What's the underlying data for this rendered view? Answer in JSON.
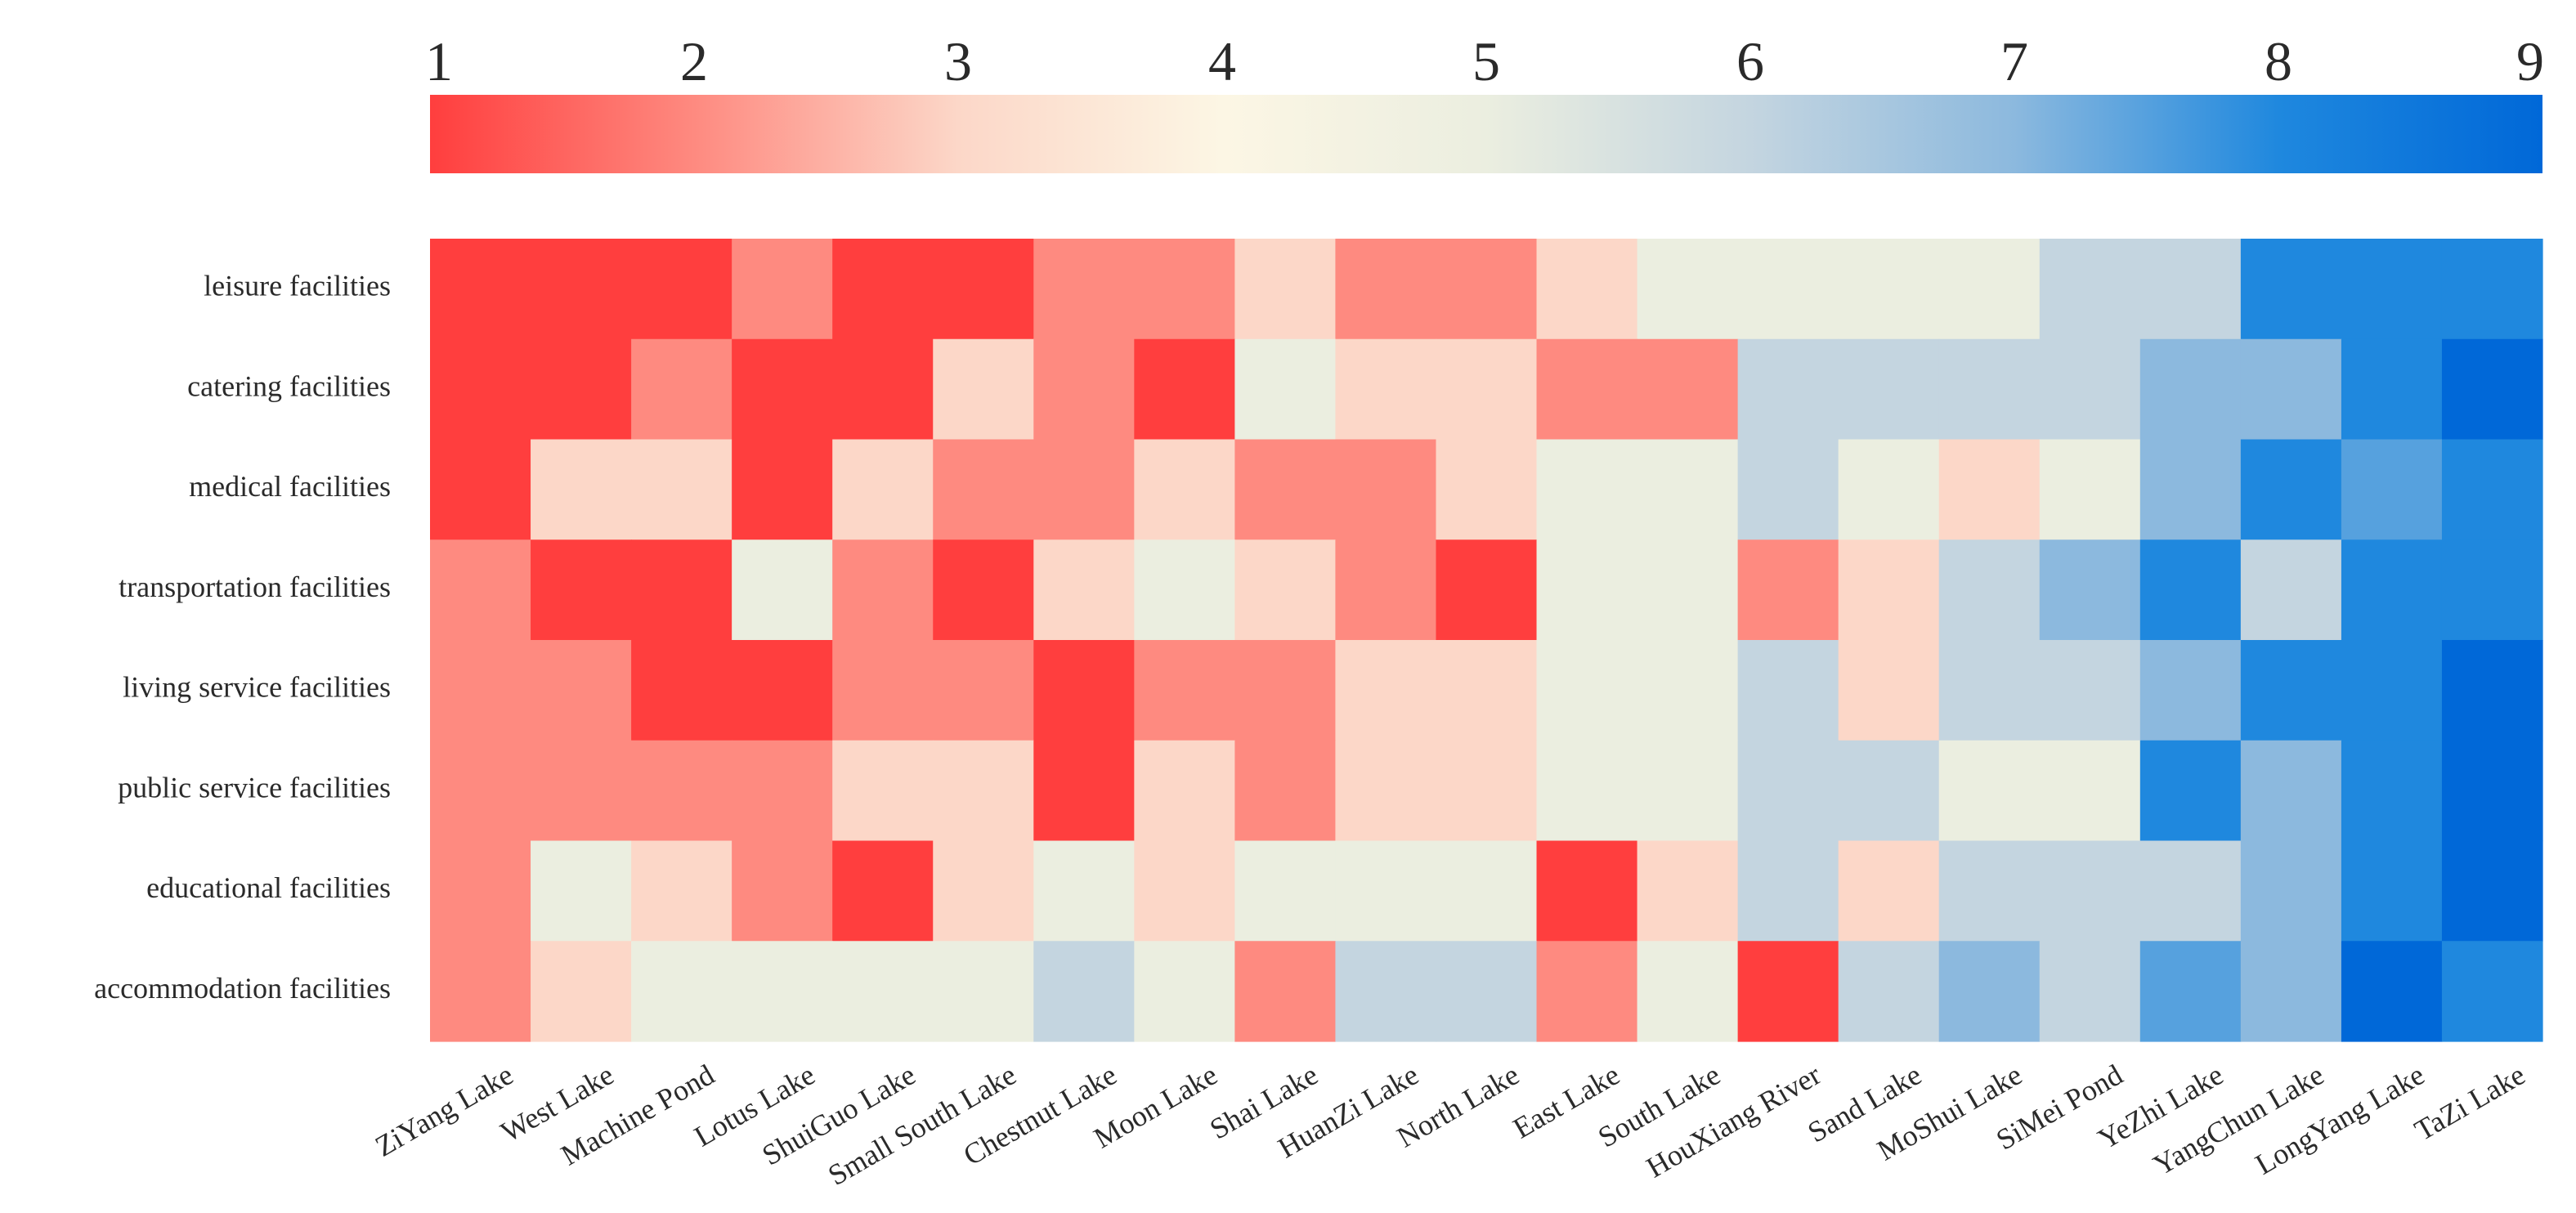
{
  "chart_data": {
    "type": "heatmap",
    "title": "",
    "xlabel": "",
    "ylabel": "",
    "colorbar": {
      "ticks": [
        "1",
        "2",
        "3",
        "4",
        "5",
        "6",
        "7",
        "8",
        "9"
      ],
      "range": [
        1,
        9
      ],
      "stops": [
        "#ff3e3e",
        "#fe8a80",
        "#fcd7c8",
        "#fcf6e4",
        "#ebeee0",
        "#c4d5e0",
        "#8cb9de",
        "#1f88de",
        "#0068d8"
      ]
    },
    "rows": [
      "leisure facilities",
      "catering facilities",
      "medical facilities",
      "transportation facilities",
      "living service facilities",
      "public service facilities",
      "educational facilities",
      "accommodation facilities"
    ],
    "columns": [
      "ZiYang Lake",
      "West Lake",
      "Machine Pond",
      "Lotus Lake",
      "ShuiGuo Lake",
      "Small South Lake",
      "Chestnut Lake",
      "Moon Lake",
      "Shai Lake",
      "HuanZi Lake",
      "North Lake",
      "East Lake",
      "South Lake",
      "HouXiang River",
      "Sand Lake",
      "MoShui Lake",
      "SiMei Pond",
      "YeZhi Lake",
      "YangChun Lake",
      "LongYang Lake",
      "TaZi Lake"
    ],
    "values": [
      [
        1,
        1,
        1,
        2,
        1,
        1,
        2,
        2,
        3,
        2,
        2,
        3,
        5,
        5,
        5,
        5,
        6,
        6,
        8,
        8,
        8
      ],
      [
        1,
        1,
        2,
        1,
        1,
        3,
        2,
        1,
        5,
        3,
        3,
        2,
        2,
        6,
        6,
        6,
        6,
        7,
        7,
        8,
        9
      ],
      [
        1,
        3,
        3,
        1,
        3,
        2,
        2,
        3,
        2,
        2,
        3,
        5,
        5,
        6,
        5,
        3,
        5,
        7,
        8,
        7.5,
        8
      ],
      [
        2,
        1,
        1,
        5,
        2,
        1,
        3,
        5,
        3,
        2,
        1,
        5,
        5,
        2,
        3,
        6,
        7,
        8,
        6,
        8,
        8
      ],
      [
        2,
        2,
        1,
        1,
        2,
        2,
        1,
        2,
        2,
        3,
        3,
        5,
        5,
        6,
        3,
        6,
        6,
        7,
        8,
        8,
        9
      ],
      [
        2,
        2,
        2,
        2,
        3,
        3,
        1,
        3,
        2,
        3,
        3,
        5,
        5,
        6,
        6,
        5,
        5,
        8,
        7,
        8,
        9
      ],
      [
        2,
        5,
        3,
        2,
        1,
        3,
        5,
        3,
        5,
        5,
        5,
        1,
        3,
        6,
        3,
        6,
        6,
        6,
        7,
        8,
        9
      ],
      [
        2,
        3,
        5,
        5,
        5,
        5,
        6,
        5,
        2,
        6,
        6,
        2,
        5,
        1,
        6,
        7,
        6,
        7.5,
        7,
        9,
        8
      ]
    ]
  }
}
